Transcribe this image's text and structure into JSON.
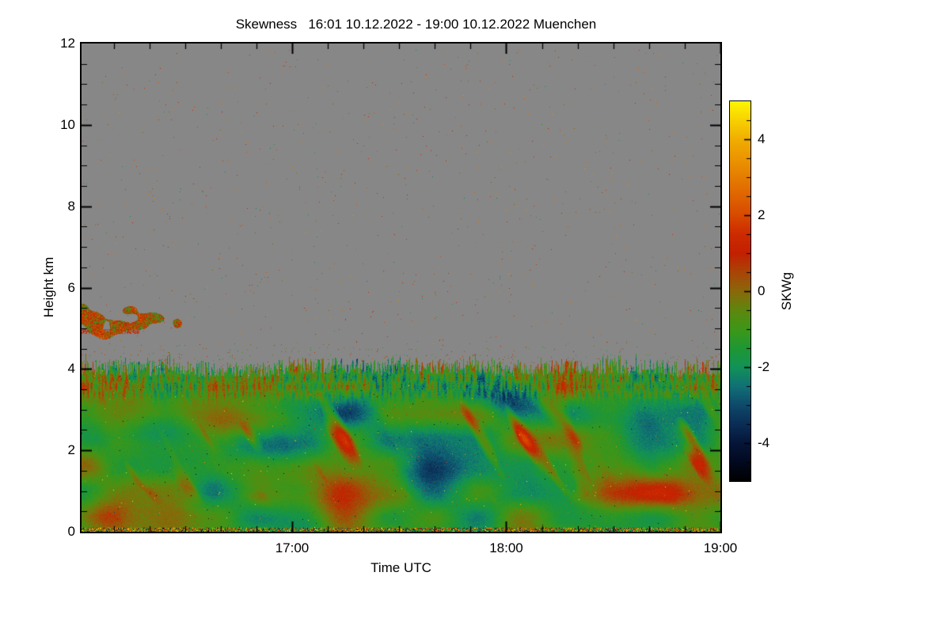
{
  "chart_data": {
    "type": "heatmap",
    "title": "Skewness   16:01 10.12.2022 - 19:00 10.12.2022 Muenchen",
    "xlabel": "Time UTC",
    "ylabel": "Height km",
    "x_start": "16:01",
    "x_end": "19:00",
    "x_total_minutes": 179,
    "x_ticks": [
      {
        "label": "17:00",
        "minute": 59
      },
      {
        "label": "18:00",
        "minute": 119
      },
      {
        "label": "19:00",
        "minute": 179
      }
    ],
    "x_minor_step_minutes": 10,
    "ylim": [
      0,
      12
    ],
    "y_ticks": [
      0,
      2,
      4,
      6,
      8,
      10,
      12
    ],
    "y_minor_step": 0.5,
    "grid": false,
    "no_data_color": "#878787",
    "colorbar": {
      "label": "SKWg",
      "range": [
        -5,
        5
      ],
      "ticks": [
        4,
        2,
        0,
        -2,
        -4
      ],
      "minor_step": 0.5,
      "stops": [
        [
          -5,
          "#000000"
        ],
        [
          -4.5,
          "#02091f"
        ],
        [
          -4,
          "#051539"
        ],
        [
          -3.5,
          "#0a2d55"
        ],
        [
          -3,
          "#0e4a6b"
        ],
        [
          -2.5,
          "#107175"
        ],
        [
          -2,
          "#129258"
        ],
        [
          -1.5,
          "#1f9733"
        ],
        [
          -1,
          "#3d9718"
        ],
        [
          -0.5,
          "#5f870e"
        ],
        [
          0,
          "#8a680a"
        ],
        [
          0.5,
          "#aa4406"
        ],
        [
          1,
          "#c32002"
        ],
        [
          1.5,
          "#cc2b00"
        ],
        [
          2,
          "#d84a00"
        ],
        [
          3,
          "#e57d00"
        ],
        [
          4,
          "#f1ae00"
        ],
        [
          5,
          "#fdf500"
        ]
      ]
    },
    "field": {
      "description": "Skewness SKWg below the aerosol-layer top (~4.1 km): green field (~-1.2) with diagonal red streaks (~+1.3) between 0.7-3.3 km, teal patches (~-2.3), olive/red canopy texture 3.2-4.1 km, multicolor speckle row at 0 km; gray no-data above with sparse warm specks; detached speckled cloud layer near 5.2 km before ~16:33.",
      "base_value": -1.15,
      "data_top_km_mean": 4.03,
      "data_top_km_jitter": 0.2,
      "cloud_layer": {
        "x_minute_max": 33,
        "km_center": 5.2,
        "km_halfwidth": 0.3
      },
      "teal_patches": [
        {
          "x_frac": 0.13,
          "km": 2.6,
          "rx": 0.055,
          "rk": 0.5,
          "amp": 1.3
        },
        {
          "x_frac": 0.3,
          "km": 1.8,
          "rx": 0.07,
          "rk": 0.55,
          "amp": 1.2
        },
        {
          "x_frac": 0.52,
          "km": 1.5,
          "rx": 0.08,
          "rk": 0.5,
          "amp": 1.2
        },
        {
          "x_frac": 0.67,
          "km": 3.2,
          "rx": 0.055,
          "rk": 0.35,
          "amp": 1.5
        },
        {
          "x_frac": 0.86,
          "km": 2.3,
          "rx": 0.07,
          "rk": 0.6,
          "amp": 1.2
        },
        {
          "x_frac": 0.42,
          "km": 2.9,
          "rx": 0.05,
          "rk": 0.4,
          "amp": 1.0
        }
      ],
      "red_blobs": [
        {
          "x_frac": 0.9,
          "km": 0.95,
          "rx": 0.085,
          "rk": 0.38,
          "amp": 2.2
        },
        {
          "x_frac": 0.37,
          "km": 0.95,
          "rx": 0.1,
          "rk": 0.55,
          "amp": 1.4
        },
        {
          "x_frac": 0.025,
          "km": 0.35,
          "rx": 0.045,
          "rk": 0.4,
          "amp": 1.8
        },
        {
          "x_frac": 0.25,
          "km": 2.6,
          "rx": 0.09,
          "rk": 0.5,
          "amp": 1.2
        }
      ],
      "streak_km_range": [
        0.7,
        3.4
      ],
      "bottom_speckle_values": [
        -4.6,
        -3.2,
        4.8,
        3.6,
        2.6,
        1.6,
        -1.8,
        0.8
      ]
    }
  }
}
